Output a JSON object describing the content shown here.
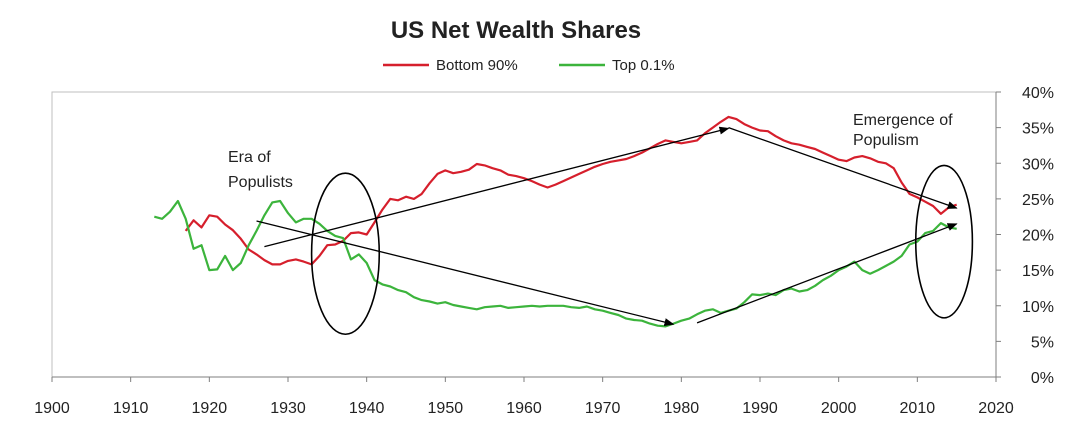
{
  "chart_data": {
    "type": "line",
    "title": "US Net Wealth Shares",
    "xlabel": "",
    "ylabel": "",
    "xlim": [
      1900,
      2020
    ],
    "ylim": [
      0,
      40
    ],
    "x_ticks": [
      "1900",
      "1910",
      "1920",
      "1930",
      "1940",
      "1950",
      "1960",
      "1970",
      "1980",
      "1990",
      "2000",
      "2010",
      "2020"
    ],
    "y_ticks": [
      "0%",
      "5%",
      "10%",
      "15%",
      "20%",
      "25%",
      "30%",
      "35%",
      "40%"
    ],
    "legend_position": "top-center",
    "grid": false,
    "series": [
      {
        "name": "Bottom 90%",
        "color": "#d61f2c",
        "points": [
          [
            1917,
            20.5
          ],
          [
            1918,
            22.0
          ],
          [
            1919,
            21.0
          ],
          [
            1920,
            22.7
          ],
          [
            1921,
            22.5
          ],
          [
            1922,
            21.4
          ],
          [
            1923,
            20.6
          ],
          [
            1924,
            19.4
          ],
          [
            1925,
            17.9
          ],
          [
            1926,
            17.2
          ],
          [
            1927,
            16.4
          ],
          [
            1928,
            15.8
          ],
          [
            1929,
            15.8
          ],
          [
            1930,
            16.3
          ],
          [
            1931,
            16.5
          ],
          [
            1932,
            16.2
          ],
          [
            1933,
            15.8
          ],
          [
            1934,
            17.0
          ],
          [
            1935,
            18.5
          ],
          [
            1936,
            18.6
          ],
          [
            1937,
            19.1
          ],
          [
            1938,
            20.2
          ],
          [
            1939,
            20.3
          ],
          [
            1940,
            20.0
          ],
          [
            1941,
            21.7
          ],
          [
            1942,
            23.5
          ],
          [
            1943,
            25.0
          ],
          [
            1944,
            24.8
          ],
          [
            1945,
            25.3
          ],
          [
            1946,
            25.0
          ],
          [
            1947,
            25.7
          ],
          [
            1948,
            27.2
          ],
          [
            1949,
            28.5
          ],
          [
            1950,
            29.0
          ],
          [
            1951,
            28.6
          ],
          [
            1952,
            28.8
          ],
          [
            1953,
            29.1
          ],
          [
            1954,
            29.9
          ],
          [
            1955,
            29.7
          ],
          [
            1956,
            29.3
          ],
          [
            1957,
            29.0
          ],
          [
            1958,
            28.4
          ],
          [
            1959,
            28.2
          ],
          [
            1960,
            27.9
          ],
          [
            1961,
            27.5
          ],
          [
            1962,
            27.0
          ],
          [
            1963,
            26.6
          ],
          [
            1964,
            27.0
          ],
          [
            1965,
            27.5
          ],
          [
            1966,
            28.0
          ],
          [
            1967,
            28.5
          ],
          [
            1968,
            29.0
          ],
          [
            1969,
            29.5
          ],
          [
            1970,
            29.9
          ],
          [
            1971,
            30.2
          ],
          [
            1972,
            30.4
          ],
          [
            1973,
            30.6
          ],
          [
            1974,
            31.0
          ],
          [
            1975,
            31.5
          ],
          [
            1976,
            32.1
          ],
          [
            1977,
            32.7
          ],
          [
            1978,
            33.2
          ],
          [
            1979,
            33.0
          ],
          [
            1980,
            32.8
          ],
          [
            1981,
            33.0
          ],
          [
            1982,
            33.2
          ],
          [
            1983,
            34.2
          ],
          [
            1984,
            35.0
          ],
          [
            1985,
            35.8
          ],
          [
            1986,
            36.5
          ],
          [
            1987,
            36.2
          ],
          [
            1988,
            35.5
          ],
          [
            1989,
            35.0
          ],
          [
            1990,
            34.6
          ],
          [
            1991,
            34.5
          ],
          [
            1992,
            33.8
          ],
          [
            1993,
            33.2
          ],
          [
            1994,
            32.8
          ],
          [
            1995,
            32.6
          ],
          [
            1996,
            32.3
          ],
          [
            1997,
            32.0
          ],
          [
            1998,
            31.5
          ],
          [
            1999,
            31.0
          ],
          [
            2000,
            30.5
          ],
          [
            2001,
            30.3
          ],
          [
            2002,
            30.8
          ],
          [
            2003,
            31.0
          ],
          [
            2004,
            30.7
          ],
          [
            2005,
            30.2
          ],
          [
            2006,
            30.0
          ],
          [
            2007,
            29.3
          ],
          [
            2008,
            27.3
          ],
          [
            2009,
            25.7
          ],
          [
            2010,
            25.2
          ],
          [
            2011,
            24.6
          ],
          [
            2012,
            24.0
          ],
          [
            2013,
            22.9
          ],
          [
            2014,
            23.8
          ],
          [
            2015,
            24.2
          ]
        ]
      },
      {
        "name": "Top 0.1%",
        "color": "#3cb43c",
        "points": [
          [
            1913,
            22.5
          ],
          [
            1914,
            22.2
          ],
          [
            1915,
            23.2
          ],
          [
            1916,
            24.7
          ],
          [
            1917,
            22.2
          ],
          [
            1918,
            18.0
          ],
          [
            1919,
            18.5
          ],
          [
            1920,
            15.0
          ],
          [
            1921,
            15.1
          ],
          [
            1922,
            17.0
          ],
          [
            1923,
            15.0
          ],
          [
            1924,
            16.0
          ],
          [
            1925,
            18.5
          ],
          [
            1926,
            20.5
          ],
          [
            1927,
            22.7
          ],
          [
            1928,
            24.5
          ],
          [
            1929,
            24.7
          ],
          [
            1930,
            23.0
          ],
          [
            1931,
            21.7
          ],
          [
            1932,
            22.2
          ],
          [
            1933,
            22.2
          ],
          [
            1934,
            21.5
          ],
          [
            1935,
            20.5
          ],
          [
            1936,
            19.8
          ],
          [
            1937,
            19.5
          ],
          [
            1938,
            16.5
          ],
          [
            1939,
            17.2
          ],
          [
            1940,
            16.0
          ],
          [
            1941,
            13.6
          ],
          [
            1942,
            13.0
          ],
          [
            1943,
            12.7
          ],
          [
            1944,
            12.2
          ],
          [
            1945,
            11.9
          ],
          [
            1946,
            11.2
          ],
          [
            1947,
            10.8
          ],
          [
            1948,
            10.6
          ],
          [
            1949,
            10.3
          ],
          [
            1950,
            10.5
          ],
          [
            1951,
            10.1
          ],
          [
            1952,
            9.9
          ],
          [
            1953,
            9.7
          ],
          [
            1954,
            9.5
          ],
          [
            1955,
            9.8
          ],
          [
            1956,
            9.9
          ],
          [
            1957,
            10.0
          ],
          [
            1958,
            9.7
          ],
          [
            1959,
            9.8
          ],
          [
            1960,
            9.9
          ],
          [
            1961,
            10.0
          ],
          [
            1962,
            9.9
          ],
          [
            1963,
            10.0
          ],
          [
            1964,
            10.0
          ],
          [
            1965,
            10.0
          ],
          [
            1966,
            9.8
          ],
          [
            1967,
            9.7
          ],
          [
            1968,
            9.9
          ],
          [
            1969,
            9.5
          ],
          [
            1970,
            9.3
          ],
          [
            1971,
            9.0
          ],
          [
            1972,
            8.7
          ],
          [
            1973,
            8.2
          ],
          [
            1974,
            8.0
          ],
          [
            1975,
            7.9
          ],
          [
            1976,
            7.5
          ],
          [
            1977,
            7.2
          ],
          [
            1978,
            7.1
          ],
          [
            1979,
            7.5
          ],
          [
            1980,
            7.9
          ],
          [
            1981,
            8.2
          ],
          [
            1982,
            8.8
          ],
          [
            1983,
            9.3
          ],
          [
            1984,
            9.5
          ],
          [
            1985,
            9.0
          ],
          [
            1986,
            9.3
          ],
          [
            1987,
            9.6
          ],
          [
            1988,
            10.5
          ],
          [
            1989,
            11.6
          ],
          [
            1990,
            11.5
          ],
          [
            1991,
            11.7
          ],
          [
            1992,
            11.5
          ],
          [
            1993,
            12.2
          ],
          [
            1994,
            12.4
          ],
          [
            1995,
            12.0
          ],
          [
            1996,
            12.2
          ],
          [
            1997,
            12.8
          ],
          [
            1998,
            13.6
          ],
          [
            1999,
            14.2
          ],
          [
            2000,
            15.0
          ],
          [
            2001,
            15.5
          ],
          [
            2002,
            16.2
          ],
          [
            2003,
            15.0
          ],
          [
            2004,
            14.5
          ],
          [
            2005,
            15.0
          ],
          [
            2006,
            15.6
          ],
          [
            2007,
            16.2
          ],
          [
            2008,
            17.0
          ],
          [
            2009,
            18.6
          ],
          [
            2010,
            19.0
          ],
          [
            2011,
            20.2
          ],
          [
            2012,
            20.5
          ],
          [
            2013,
            21.6
          ],
          [
            2014,
            21.0
          ],
          [
            2015,
            20.8
          ]
        ]
      }
    ],
    "annotations": [
      {
        "lines": [
          "Era of",
          "Populists"
        ]
      },
      {
        "lines": [
          "Emergence of",
          "Populism"
        ]
      }
    ],
    "arrows": [
      {
        "from": [
          1927,
          18.3
        ],
        "to": [
          1986,
          34.9
        ]
      },
      {
        "from": [
          1926,
          21.9
        ],
        "to": [
          1979,
          7.4
        ]
      },
      {
        "from": [
          1986,
          35.0
        ],
        "to": [
          2015,
          23.7
        ]
      },
      {
        "from": [
          1982,
          7.6
        ],
        "to": [
          2015,
          21.5
        ]
      }
    ],
    "ellipses": [
      {
        "center": [
          1937.3,
          17.3
        ],
        "rx_years": 4.3,
        "ry_pct": 11.3
      },
      {
        "center": [
          2013.4,
          19.0
        ],
        "rx_years": 3.6,
        "ry_pct": 10.7
      }
    ]
  }
}
